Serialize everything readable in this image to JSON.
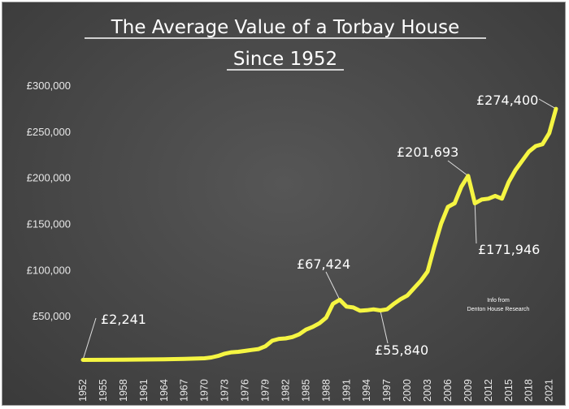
{
  "chart_data": {
    "type": "line",
    "title_line1": "The Average Value of a Torbay House",
    "title_line2": "Since 1952",
    "xlabel": "",
    "ylabel": "",
    "ylim": [
      0,
      300000
    ],
    "xlim": [
      1952,
      2022
    ],
    "y_ticks": [
      {
        "value": 50000,
        "label": "£50,000"
      },
      {
        "value": 100000,
        "label": "£100,000"
      },
      {
        "value": 150000,
        "label": "£150,000"
      },
      {
        "value": 200000,
        "label": "£200,000"
      },
      {
        "value": 250000,
        "label": "£250,000"
      },
      {
        "value": 300000,
        "label": "£300,000"
      }
    ],
    "x_ticks": [
      1952,
      1955,
      1958,
      1961,
      1964,
      1967,
      1970,
      1973,
      1976,
      1979,
      1982,
      1985,
      1988,
      1991,
      1994,
      1997,
      2000,
      2003,
      2006,
      2009,
      2012,
      2015,
      2018,
      2021
    ],
    "grid": false,
    "line_color": "#f5f542",
    "series": [
      {
        "name": "",
        "x": [
          1952,
          1955,
          1958,
          1961,
          1964,
          1967,
          1970,
          1971,
          1972,
          1973,
          1974,
          1975,
          1976,
          1977,
          1978,
          1979,
          1980,
          1981,
          1982,
          1983,
          1984,
          1985,
          1986,
          1987,
          1988,
          1989,
          1990,
          1991,
          1992,
          1993,
          1994,
          1995,
          1996,
          1997,
          1998,
          1999,
          2000,
          2001,
          2002,
          2003,
          2004,
          2005,
          2006,
          2007,
          2008,
          2009,
          2010,
          2011,
          2012,
          2013,
          2014,
          2015,
          2016,
          2017,
          2018,
          2019,
          2020,
          2021,
          2022
        ],
        "y": [
          2241,
          2300,
          2400,
          2600,
          2900,
          3300,
          4000,
          4800,
          6500,
          9000,
          10500,
          11000,
          12000,
          13000,
          14000,
          17000,
          23000,
          25000,
          25500,
          27000,
          30000,
          35000,
          38000,
          42000,
          48000,
          63000,
          67424,
          60000,
          59000,
          55500,
          56000,
          57000,
          55840,
          57000,
          63000,
          68000,
          72000,
          80000,
          88000,
          98000,
          125000,
          150000,
          168000,
          172000,
          190000,
          201693,
          171946,
          176000,
          177000,
          180000,
          177000,
          195000,
          208000,
          218000,
          228000,
          234000,
          236000,
          248000,
          274400
        ]
      }
    ],
    "annotations": [
      {
        "label": "£2,241",
        "x": 1952,
        "y": 2241
      },
      {
        "label": "£67,424",
        "x": 1990,
        "y": 67424
      },
      {
        "label": "£55,840",
        "x": 1996,
        "y": 55840
      },
      {
        "label": "£201,693",
        "x": 2009,
        "y": 201693
      },
      {
        "label": "£171,946",
        "x": 2010,
        "y": 171946
      },
      {
        "label": "£274,400",
        "x": 2022,
        "y": 274400
      }
    ],
    "source_note_line1": "Info from",
    "source_note_line2": "Denton House Research"
  }
}
